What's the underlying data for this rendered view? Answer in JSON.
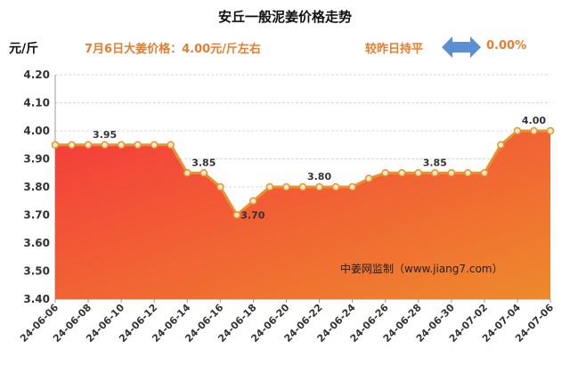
{
  "title": "安丘一般泥姜价格走势",
  "unit_label": "元/斤",
  "price_note": "7月6日大姜价格：4.00元/斤左右",
  "compare_label": "较昨日持平",
  "change_value": "0.00%",
  "watermark": "中姜网监制（www.jiang7.com）",
  "arrow_icon": "double-arrow-icon",
  "colors": {
    "line": "#e8912d",
    "marker_fill": "#fde9c8",
    "fill_top": "#f43c3c",
    "fill_bottom": "#ee8a2c",
    "accent_text": "#e87d2f",
    "arrow": "#5a8fd4"
  },
  "chart_data": {
    "type": "area",
    "title": "安丘一般泥姜价格走势",
    "ylabel": "元/斤",
    "xlabel": "",
    "ylim": [
      3.4,
      4.2
    ],
    "yticks": [
      "4.20",
      "4.10",
      "4.00",
      "3.90",
      "3.80",
      "3.70",
      "3.60",
      "3.50",
      "3.40"
    ],
    "grid": true,
    "x": [
      "24-06-06",
      "24-06-07",
      "24-06-08",
      "24-06-09",
      "24-06-10",
      "24-06-11",
      "24-06-12",
      "24-06-13",
      "24-06-14",
      "24-06-15",
      "24-06-16",
      "24-06-17",
      "24-06-18",
      "24-06-19",
      "24-06-20",
      "24-06-21",
      "24-06-22",
      "24-06-23",
      "24-06-24",
      "24-06-25",
      "24-06-26",
      "24-06-27",
      "24-06-28",
      "24-06-29",
      "24-06-30",
      "24-07-01",
      "24-07-02",
      "24-07-03",
      "24-07-04",
      "24-07-05",
      "24-07-06"
    ],
    "xtick_labels": [
      "24-06-06",
      "24-06-08",
      "24-06-10",
      "24-06-12",
      "24-06-14",
      "24-06-16",
      "24-06-18",
      "24-06-20",
      "24-06-22",
      "24-06-24",
      "24-06-26",
      "24-06-28",
      "24-06-30",
      "24-07-02",
      "24-07-04",
      "24-07-06"
    ],
    "values": [
      3.95,
      3.95,
      3.95,
      3.95,
      3.95,
      3.95,
      3.95,
      3.95,
      3.85,
      3.85,
      3.8,
      3.7,
      3.75,
      3.8,
      3.8,
      3.8,
      3.8,
      3.8,
      3.8,
      3.83,
      3.85,
      3.85,
      3.85,
      3.85,
      3.85,
      3.85,
      3.85,
      3.95,
      4.0,
      4.0,
      4.0
    ],
    "data_labels": [
      {
        "x": "24-06-09",
        "text": "3.95"
      },
      {
        "x": "24-06-15",
        "text": "3.85"
      },
      {
        "x": "24-06-17",
        "text": "3.70"
      },
      {
        "x": "24-06-22",
        "text": "3.80"
      },
      {
        "x": "24-06-29",
        "text": "3.85"
      },
      {
        "x": "24-07-05",
        "text": "4.00"
      }
    ]
  }
}
